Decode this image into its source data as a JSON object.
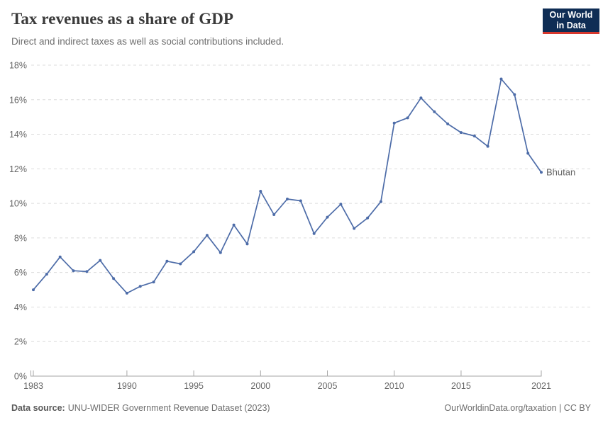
{
  "header": {
    "title": "Tax revenues as a share of GDP",
    "subtitle": "Direct and indirect taxes as well as social contributions included.",
    "logo": {
      "line1": "Our World",
      "line2": "in Data"
    }
  },
  "footer": {
    "source_label": "Data source:",
    "source_text": "UNU-WIDER Government Revenue Dataset (2023)",
    "right_text": "OurWorldinData.org/taxation | CC BY"
  },
  "colors": {
    "series_blue": "#4d6ca8",
    "grid": "#dcdcdc",
    "axis": "#a6a6a6",
    "tick_text": "#666666",
    "logo_bg": "#0f2d55",
    "logo_red": "#d7382e"
  },
  "chart_data": {
    "type": "line",
    "title": "Tax revenues as a share of GDP",
    "subtitle": "Direct and indirect taxes as well as social contributions included.",
    "xlabel": "",
    "ylabel": "",
    "xlim": [
      1983,
      2021
    ],
    "ylim": [
      0,
      18
    ],
    "grid": "dashed-horizontal",
    "legend": "end-of-line-label",
    "x_ticks": [
      {
        "value": 1983,
        "label": "1983"
      },
      {
        "value": 1990,
        "label": "1990"
      },
      {
        "value": 1995,
        "label": "1995"
      },
      {
        "value": 2000,
        "label": "2000"
      },
      {
        "value": 2005,
        "label": "2005"
      },
      {
        "value": 2010,
        "label": "2010"
      },
      {
        "value": 2015,
        "label": "2015"
      },
      {
        "value": 2021,
        "label": "2021"
      }
    ],
    "y_ticks": [
      {
        "value": 0,
        "label": "0%"
      },
      {
        "value": 2,
        "label": "2%"
      },
      {
        "value": 4,
        "label": "4%"
      },
      {
        "value": 6,
        "label": "6%"
      },
      {
        "value": 8,
        "label": "8%"
      },
      {
        "value": 10,
        "label": "10%"
      },
      {
        "value": 12,
        "label": "12%"
      },
      {
        "value": 14,
        "label": "14%"
      },
      {
        "value": 16,
        "label": "16%"
      },
      {
        "value": 18,
        "label": "18%"
      }
    ],
    "series": [
      {
        "name": "Bhutan",
        "color": "#4d6ca8",
        "x": [
          1983,
          1984,
          1985,
          1986,
          1987,
          1988,
          1989,
          1990,
          1991,
          1992,
          1993,
          1994,
          1995,
          1996,
          1997,
          1998,
          1999,
          2000,
          2001,
          2002,
          2003,
          2004,
          2005,
          2006,
          2007,
          2008,
          2009,
          2010,
          2011,
          2012,
          2013,
          2014,
          2015,
          2016,
          2017,
          2018,
          2019,
          2020,
          2021
        ],
        "values": [
          5.0,
          5.9,
          6.9,
          6.1,
          6.05,
          6.7,
          5.65,
          4.8,
          5.2,
          5.45,
          6.65,
          6.5,
          7.2,
          8.15,
          7.15,
          8.75,
          7.65,
          10.7,
          9.35,
          10.25,
          10.15,
          8.25,
          9.2,
          9.95,
          8.55,
          9.15,
          10.1,
          14.65,
          14.95,
          16.1,
          15.3,
          14.6,
          14.1,
          13.9,
          13.3,
          17.2,
          16.3,
          12.9,
          11.8
        ]
      }
    ]
  }
}
